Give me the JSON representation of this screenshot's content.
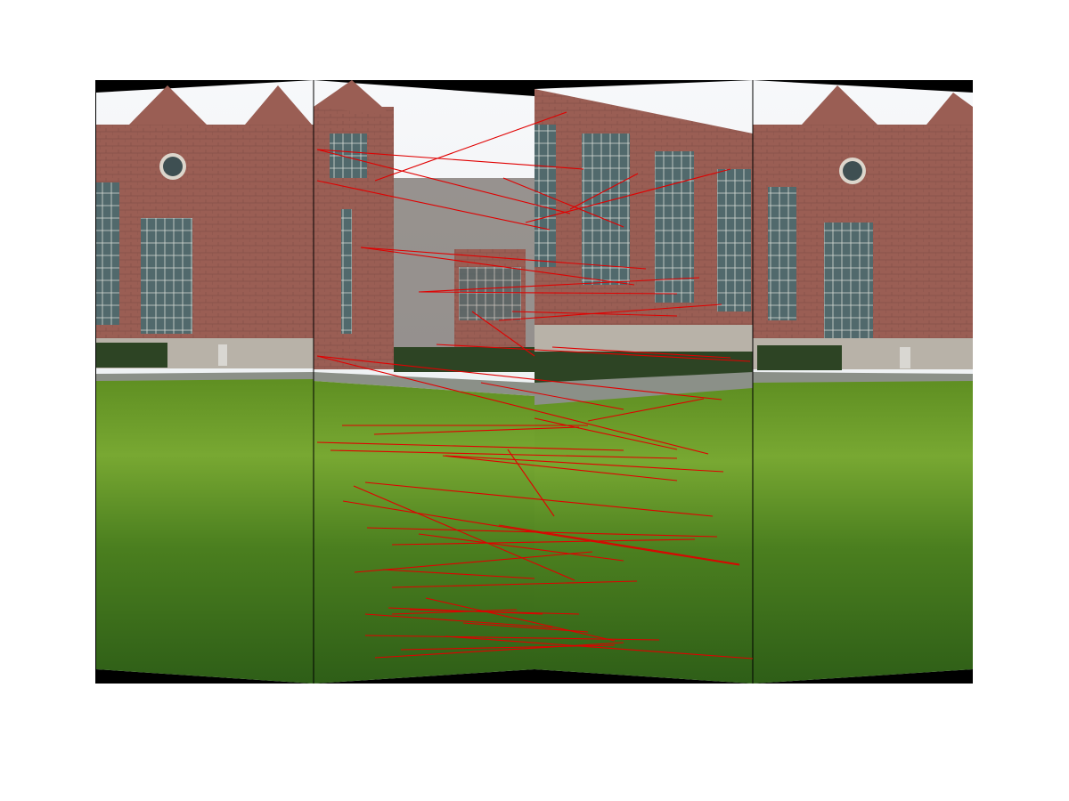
{
  "figure": {
    "panels": [
      {
        "id": "panel-1"
      },
      {
        "id": "panel-2"
      },
      {
        "id": "panel-3"
      },
      {
        "id": "panel-4"
      }
    ],
    "match_count": 48,
    "colors": {
      "background": "#ffffff",
      "match_line": "#e00000",
      "sky": "#f3f5f7",
      "brick": "#9b5f55",
      "brick_dark": "#7f4a43",
      "trim": "#b8b2a8",
      "glass": "#4f6a6f",
      "lawn_light": "#6f9a2c",
      "lawn_dark": "#2f5c16",
      "hedge": "#2d4424",
      "path": "#8b9088",
      "border": "#000000"
    }
  }
}
